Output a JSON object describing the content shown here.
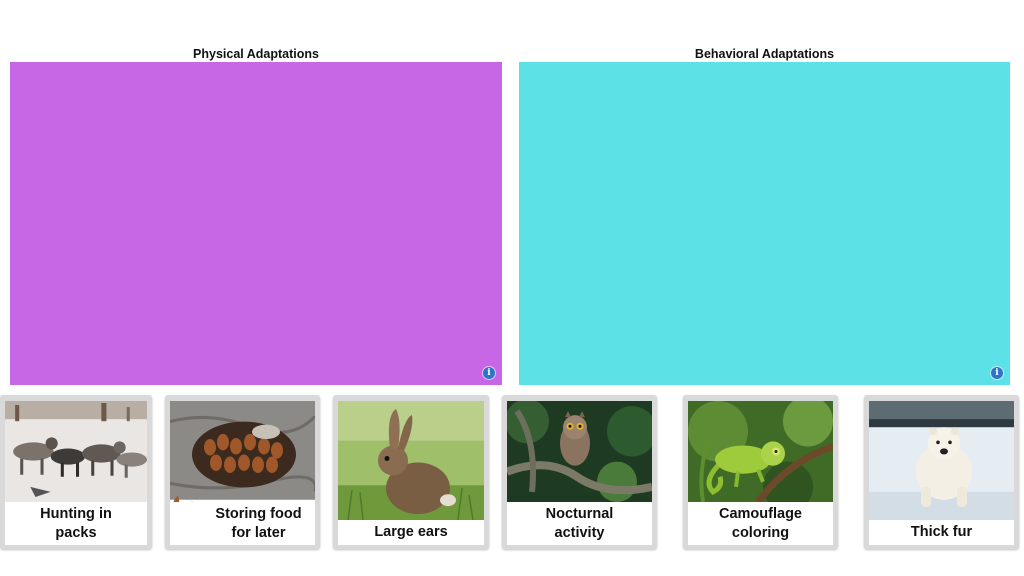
{
  "zones": [
    {
      "title": "Physical Adaptations",
      "color": "#c767e6",
      "info_icon": "info-icon"
    },
    {
      "title": "Behavioral Adaptations",
      "color": "#5ce1e6",
      "info_icon": "info-icon"
    }
  ],
  "cards": [
    {
      "label": "Hunting in\npacks",
      "image": "wolves-photo"
    },
    {
      "label": "Storing food\nfor later",
      "image": "acorns-photo"
    },
    {
      "label": "Large ears",
      "image": "rabbit-photo"
    },
    {
      "label": "Nocturnal\nactivity",
      "image": "owl-photo"
    },
    {
      "label": "Camouflage\ncoloring",
      "image": "chameleon-photo"
    },
    {
      "label": "Thick fur",
      "image": "polar-bear-photo"
    }
  ]
}
